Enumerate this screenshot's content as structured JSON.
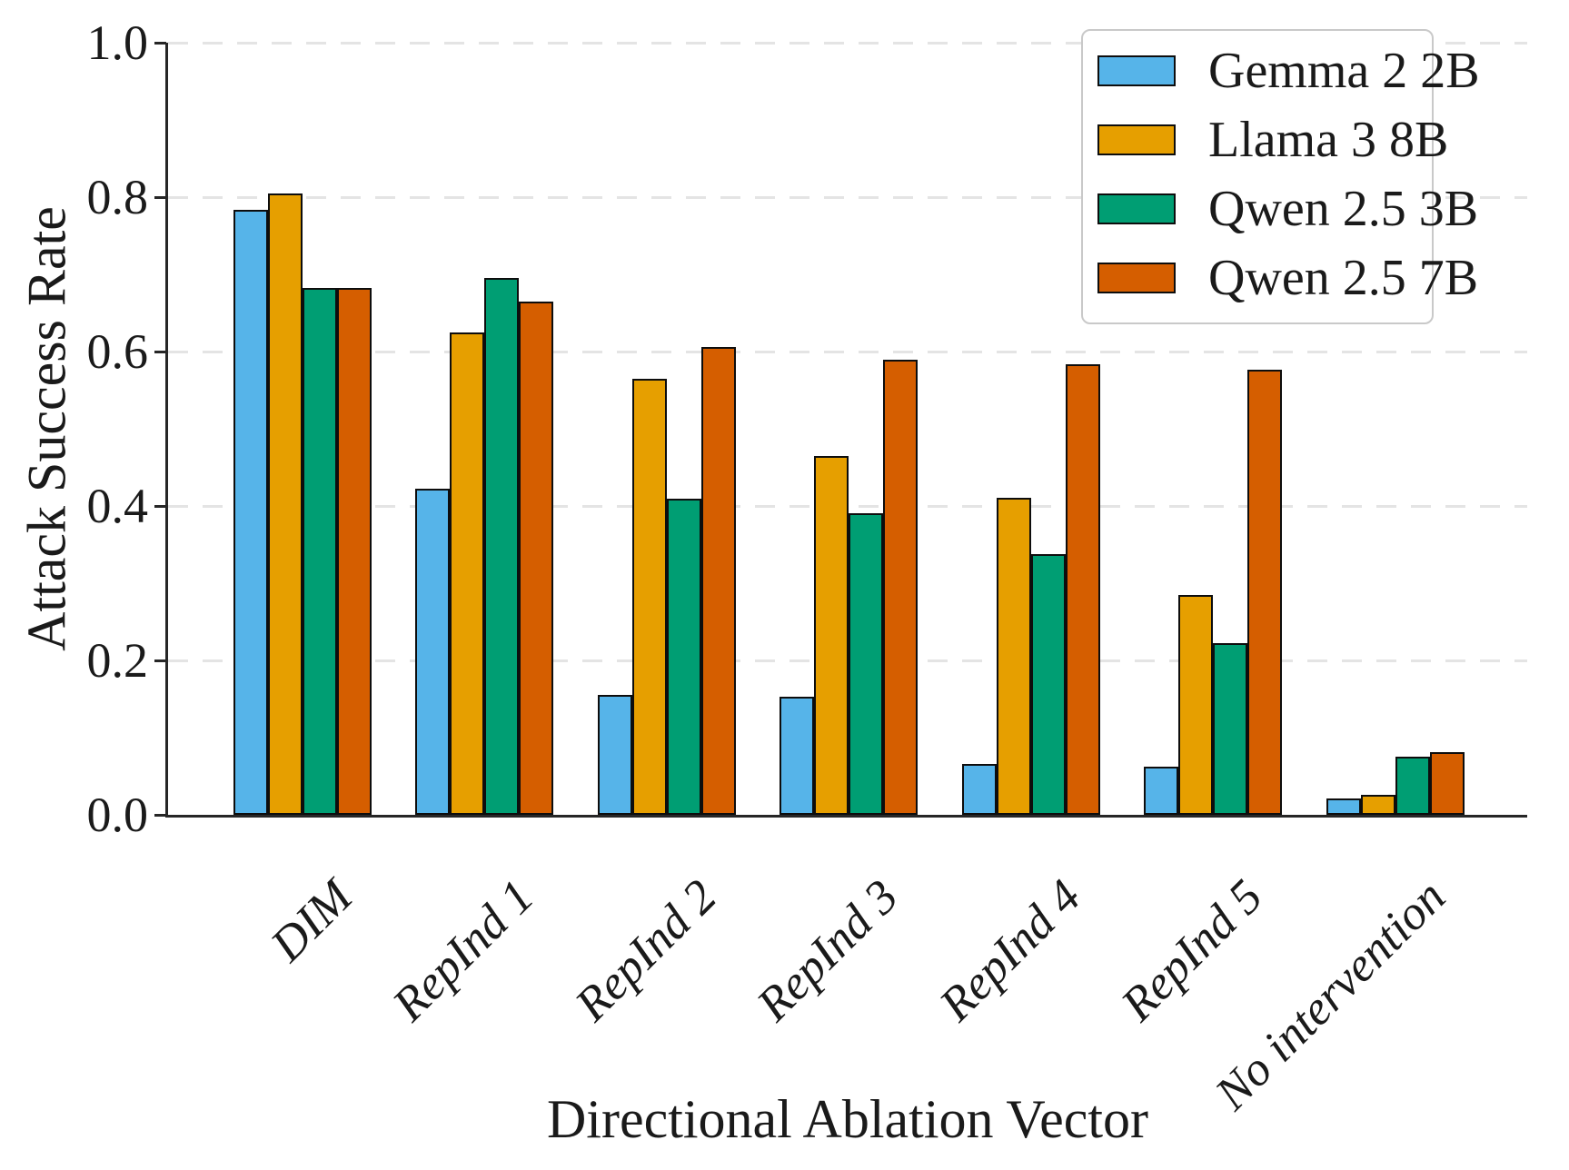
{
  "chart_data": {
    "type": "bar",
    "title": "",
    "xlabel": "Directional Ablation Vector",
    "ylabel": "Attack Success Rate",
    "categories": [
      "DIM",
      "RepInd 1",
      "RepInd 2",
      "RepInd 3",
      "RepInd 4",
      "RepInd 5",
      "No intervention"
    ],
    "series": [
      {
        "name": "Gemma 2 2B",
        "color": "#56B4E9",
        "values": [
          0.785,
          0.423,
          0.157,
          0.154,
          0.067,
          0.064,
          0.022
        ]
      },
      {
        "name": "Llama 3 8B",
        "color": "#E69F00",
        "values": [
          0.806,
          0.626,
          0.566,
          0.466,
          0.412,
          0.286,
          0.027
        ]
      },
      {
        "name": "Qwen 2.5 3B",
        "color": "#009E73",
        "values": [
          0.683,
          0.696,
          0.411,
          0.392,
          0.339,
          0.224,
          0.076
        ]
      },
      {
        "name": "Qwen 2.5 7B",
        "color": "#D55E00",
        "values": [
          0.683,
          0.666,
          0.607,
          0.59,
          0.585,
          0.578,
          0.082
        ]
      }
    ],
    "ylim": [
      0.0,
      1.0
    ],
    "yticks": [
      0.0,
      0.2,
      0.4,
      0.6,
      0.8,
      1.0
    ],
    "ytick_labels": [
      "0.0",
      "0.2",
      "0.4",
      "0.6",
      "0.8",
      "1.0"
    ],
    "grid": "horizontal-dashed",
    "grid_color": "#e4e4e4",
    "legend_position": "upper right",
    "bar_edge_color": "#0d0d0d",
    "axis_color": "#262626"
  }
}
